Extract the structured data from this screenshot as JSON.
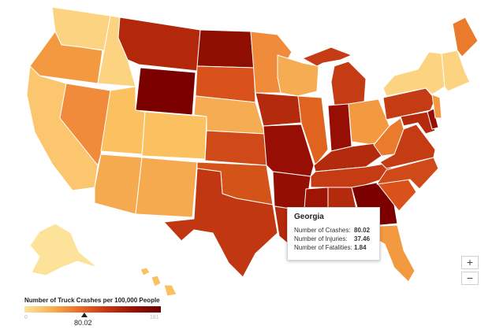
{
  "legend": {
    "title": "Number of Truck Crashes per 100,000 People",
    "min_label": "0",
    "max_label": "181",
    "selected_value": "80.02",
    "colors": [
      "#fde39a",
      "#f7b24f",
      "#ea6d25",
      "#c93512",
      "#971205",
      "#6b0000"
    ]
  },
  "tooltip": {
    "state": "Georgia",
    "rows": [
      {
        "label": "Number of Crashes:",
        "value": "80.02"
      },
      {
        "label": "Number of Injuries:",
        "value": "37.46"
      },
      {
        "label": "Number of Fatalities:",
        "value": "1.84"
      }
    ]
  },
  "zoom": {
    "in_label": "+",
    "out_label": "−"
  },
  "states": [
    {
      "name": "Washington",
      "color": "#fcd481"
    },
    {
      "name": "Oregon",
      "color": "#f39a41"
    },
    {
      "name": "California",
      "color": "#fbc66d"
    },
    {
      "name": "Idaho",
      "color": "#fcd481"
    },
    {
      "name": "Nevada",
      "color": "#ef8b3a"
    },
    {
      "name": "Montana",
      "color": "#b3280b"
    },
    {
      "name": "Wyoming",
      "color": "#7a0000"
    },
    {
      "name": "Utah",
      "color": "#fbc060"
    },
    {
      "name": "Arizona",
      "color": "#f6aa50"
    },
    {
      "name": "Colorado",
      "color": "#fbc060"
    },
    {
      "name": "New Mexico",
      "color": "#f6aa50"
    },
    {
      "name": "North Dakota",
      "color": "#8e0e02"
    },
    {
      "name": "South Dakota",
      "color": "#d9521b"
    },
    {
      "name": "Nebraska",
      "color": "#f6ac52"
    },
    {
      "name": "Kansas",
      "color": "#cf4a18"
    },
    {
      "name": "Oklahoma",
      "color": "#d45319"
    },
    {
      "name": "Texas",
      "color": "#c13712"
    },
    {
      "name": "Minnesota",
      "color": "#ef8b3a"
    },
    {
      "name": "Iowa",
      "color": "#b42a0d"
    },
    {
      "name": "Missouri",
      "color": "#970f04"
    },
    {
      "name": "Arkansas",
      "color": "#930f03"
    },
    {
      "name": "Louisiana",
      "color": "#b42a0d"
    },
    {
      "name": "Wisconsin",
      "color": "#f6ac52"
    },
    {
      "name": "Illinois",
      "color": "#e0641f"
    },
    {
      "name": "Michigan",
      "color": "#c53b13"
    },
    {
      "name": "Indiana",
      "color": "#970f04"
    },
    {
      "name": "Ohio",
      "color": "#f39a41"
    },
    {
      "name": "Kentucky",
      "color": "#b42a0d"
    },
    {
      "name": "Tennessee",
      "color": "#c53b13"
    },
    {
      "name": "Mississippi",
      "color": "#9e1405"
    },
    {
      "name": "Alabama",
      "color": "#b42a0d"
    },
    {
      "name": "Georgia",
      "color": "#7d0000"
    },
    {
      "name": "Florida",
      "color": "#f39a41"
    },
    {
      "name": "South Carolina",
      "color": "#d9521b"
    },
    {
      "name": "North Carolina",
      "color": "#cf4a18"
    },
    {
      "name": "Virginia",
      "color": "#c53b13"
    },
    {
      "name": "West Virginia",
      "color": "#ea7a2c"
    },
    {
      "name": "Pennsylvania",
      "color": "#c53b13"
    },
    {
      "name": "New York",
      "color": "#fcd481"
    },
    {
      "name": "Maine",
      "color": "#ea7a2c"
    },
    {
      "name": "New England",
      "color": "#fcd481"
    },
    {
      "name": "New Jersey",
      "color": "#f39a41"
    },
    {
      "name": "Maryland",
      "color": "#b42a0d"
    },
    {
      "name": "Delaware",
      "color": "#970f04"
    },
    {
      "name": "Alaska",
      "color": "#fde39a"
    },
    {
      "name": "Hawaii",
      "color": "#fbc060"
    }
  ]
}
